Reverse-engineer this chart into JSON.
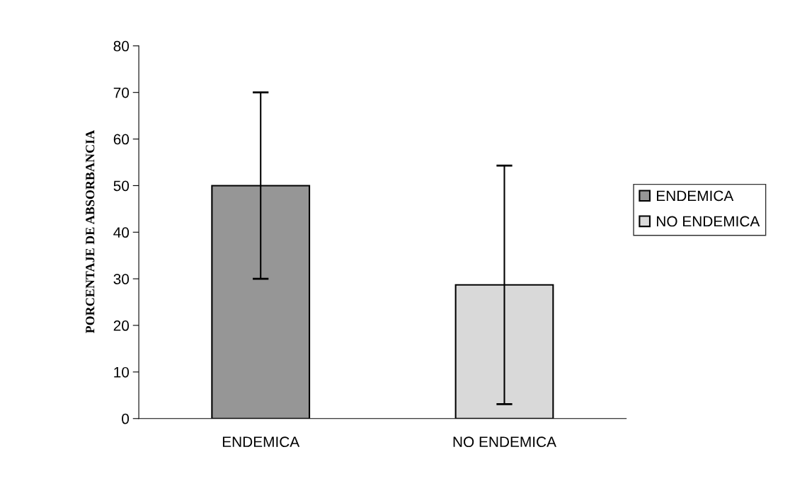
{
  "chart_data": {
    "type": "bar",
    "ylabel": "PORCENTAJE DE ABSORBANCIA",
    "categories": [
      "ENDEMICA",
      "NO ENDEMICA"
    ],
    "series": [
      {
        "name": "ENDEMICA",
        "color": "#969696",
        "values": [
          50,
          null
        ],
        "errors": [
          20,
          null
        ]
      },
      {
        "name": "NO ENDEMICA",
        "color": "#d9d9d9",
        "values": [
          null,
          28.7
        ],
        "errors": [
          null,
          25.6
        ]
      }
    ],
    "ylim": [
      0,
      80
    ],
    "yticks": [
      0,
      10,
      20,
      30,
      40,
      50,
      60,
      70,
      80
    ],
    "grid": false,
    "legend": "right"
  }
}
